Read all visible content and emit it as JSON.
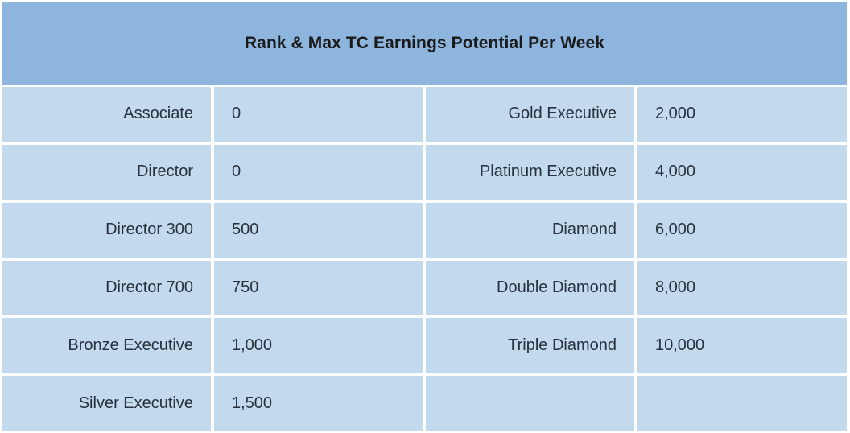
{
  "table": {
    "title": "Rank & Max TC Earnings Potential Per Week",
    "rows": [
      {
        "rank_left": "Associate",
        "value_left": "0",
        "rank_right": "Gold Executive",
        "value_right": "2,000"
      },
      {
        "rank_left": "Director",
        "value_left": "0",
        "rank_right": "Platinum Executive",
        "value_right": "4,000"
      },
      {
        "rank_left": "Director 300",
        "value_left": "500",
        "rank_right": "Diamond",
        "value_right": "6,000"
      },
      {
        "rank_left": "Director 700",
        "value_left": "750",
        "rank_right": "Double Diamond",
        "value_right": "8,000"
      },
      {
        "rank_left": "Bronze Executive",
        "value_left": "1,000",
        "rank_right": "Triple Diamond",
        "value_right": "10,000"
      },
      {
        "rank_left": "Silver Executive",
        "value_left": "1,500",
        "rank_right": "",
        "value_right": ""
      }
    ]
  }
}
